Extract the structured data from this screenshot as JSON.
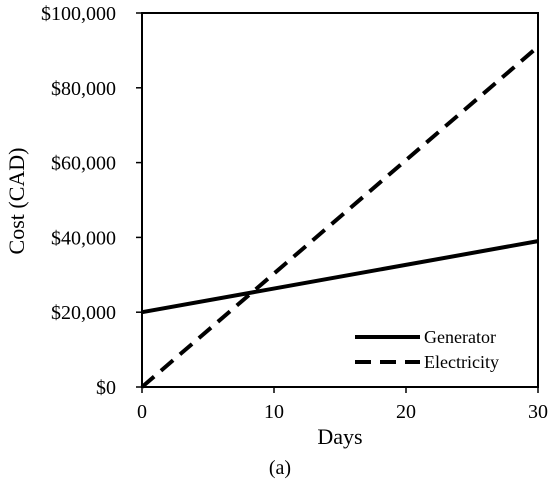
{
  "chart_data": {
    "type": "line",
    "xlabel": "Days",
    "ylabel": "Cost (CAD)",
    "caption": "(a)",
    "xlim": [
      0,
      30
    ],
    "ylim": [
      0,
      100000
    ],
    "x_ticks": [
      0,
      10,
      20,
      30
    ],
    "x_tick_labels": [
      "0",
      "10",
      "20",
      "30"
    ],
    "y_ticks": [
      0,
      20000,
      40000,
      60000,
      80000,
      100000
    ],
    "y_tick_labels": [
      "$0",
      "$20,000",
      "$40,000",
      "$60,000",
      "$80,000",
      "$100,000"
    ],
    "grid": false,
    "legend_position": "bottom-right",
    "series": [
      {
        "name": "Generator",
        "style": "solid",
        "color": "#000000",
        "x": [
          0,
          30
        ],
        "y": [
          20000,
          39000
        ]
      },
      {
        "name": "Electricity",
        "style": "dashed",
        "color": "#000000",
        "x": [
          0,
          30
        ],
        "y": [
          0,
          91000
        ]
      }
    ]
  }
}
